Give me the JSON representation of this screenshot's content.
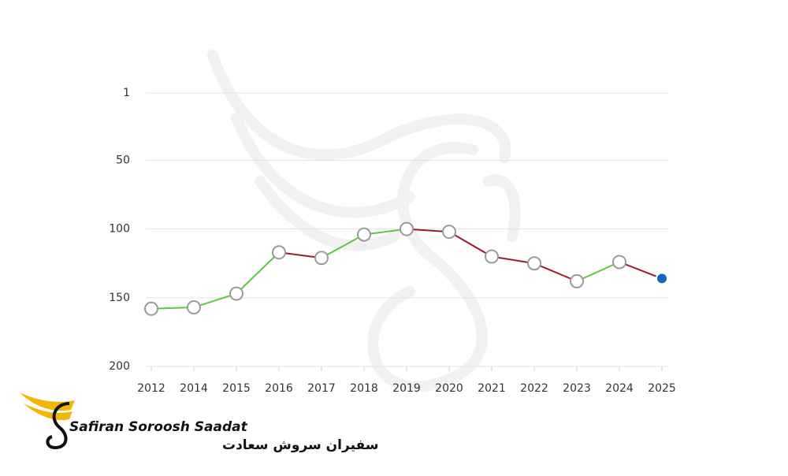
{
  "chart_data": {
    "type": "line",
    "categories": [
      "2012",
      "2014",
      "2015",
      "2016",
      "2017",
      "2018",
      "2019",
      "2020",
      "2021",
      "2022",
      "2023",
      "2024",
      "2025"
    ],
    "values": [
      158,
      157,
      147,
      117,
      121,
      104,
      100,
      102,
      120,
      125,
      138,
      124,
      136
    ],
    "ylim": [
      200,
      1
    ],
    "yticks": [
      1,
      50,
      100,
      150,
      200
    ],
    "grid": true,
    "improve_color": "#5cc83e",
    "decline_color": "#a3162c",
    "point_color": "#ffffff",
    "point_stroke": "#9a9a9a",
    "last_point_color": "#1565c0"
  },
  "logo": {
    "name": "Safiran Soroosh Saadat",
    "name_fa": "سفیران سروش سعادت"
  }
}
